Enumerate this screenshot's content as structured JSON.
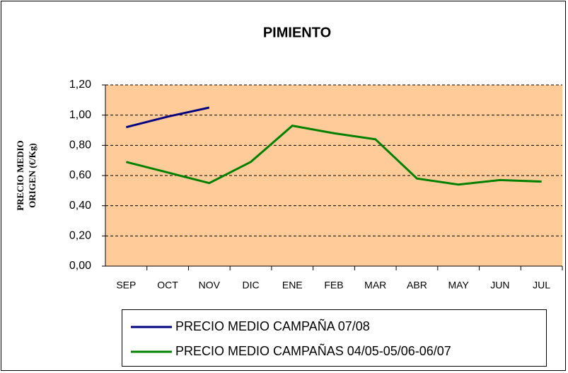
{
  "chart_data": {
    "type": "line",
    "title": "PIMIENTO",
    "ylabel": [
      "PRECIO MEDIO",
      "ORIGEN (€/Kg)"
    ],
    "categories": [
      "SEP",
      "OCT",
      "NOV",
      "DIC",
      "ENE",
      "FEB",
      "MAR",
      "ABR",
      "MAY",
      "JUN",
      "JUL"
    ],
    "series": [
      {
        "name": "PRECIO MEDIO CAMPAÑA 07/08",
        "color": "#000080",
        "values": [
          0.92,
          0.99,
          1.05,
          null,
          null,
          null,
          null,
          null,
          null,
          null,
          null
        ]
      },
      {
        "name": "PRECIO MEDIO CAMPAÑAS 04/05-05/06-06/07",
        "color": "#008000",
        "values": [
          0.69,
          0.62,
          0.55,
          0.69,
          0.93,
          0.88,
          0.84,
          0.58,
          0.54,
          0.57,
          0.56
        ]
      }
    ],
    "ylim": [
      0,
      1.2
    ],
    "yticks": [
      {
        "value": 0,
        "label": "0,00"
      },
      {
        "value": 0.2,
        "label": "0,20"
      },
      {
        "value": 0.4,
        "label": "0,40"
      },
      {
        "value": 0.6,
        "label": "0,60"
      },
      {
        "value": 0.8,
        "label": "0,80"
      },
      {
        "value": 1.0,
        "label": "1,00"
      },
      {
        "value": 1.2,
        "label": "1,20"
      }
    ],
    "grid": true,
    "plot_background": "#ffcc99",
    "legend": "bottom"
  }
}
